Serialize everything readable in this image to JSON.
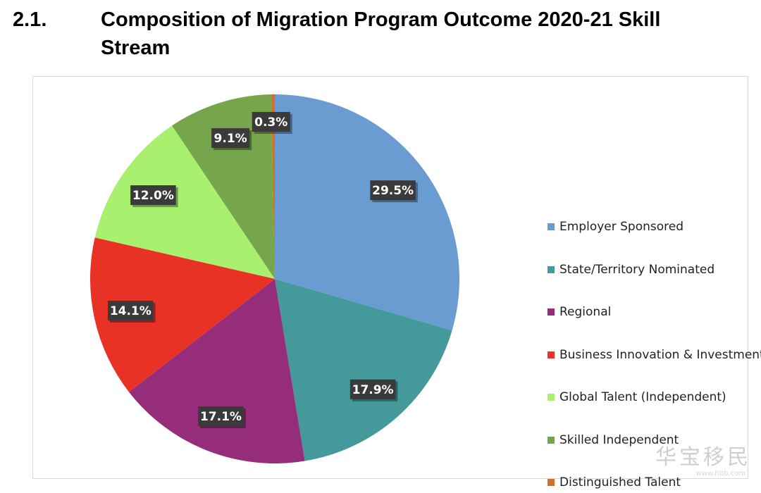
{
  "heading": {
    "number": "2.1.",
    "title": "Composition of Migration Program Outcome 2020-21 Skill Stream"
  },
  "chart_data": {
    "type": "pie",
    "title": "",
    "legend_position": "right",
    "slices": [
      {
        "label": "Employer Sponsored",
        "value": 29.5,
        "display": "29.5%",
        "color": "#6a9bd1"
      },
      {
        "label": "State/Territory Nominated",
        "value": 17.9,
        "display": "17.9%",
        "color": "#44999a"
      },
      {
        "label": "Regional",
        "value": 17.1,
        "display": "17.1%",
        "color": "#962d7b"
      },
      {
        "label": "Business Innovation & Investment",
        "value": 14.1,
        "display": "14.1%",
        "color": "#e83226"
      },
      {
        "label": "Global Talent (Independent)",
        "value": 12.0,
        "display": "12.0%",
        "color": "#a8f06e"
      },
      {
        "label": "Skilled Independent",
        "value": 9.1,
        "display": "9.1%",
        "color": "#77a54b"
      },
      {
        "label": "Distinguished Talent",
        "value": 0.3,
        "display": "0.3%",
        "color": "#d0702a"
      }
    ]
  },
  "watermark": {
    "text": "华宝移民",
    "sub": "www.hbb.com"
  }
}
